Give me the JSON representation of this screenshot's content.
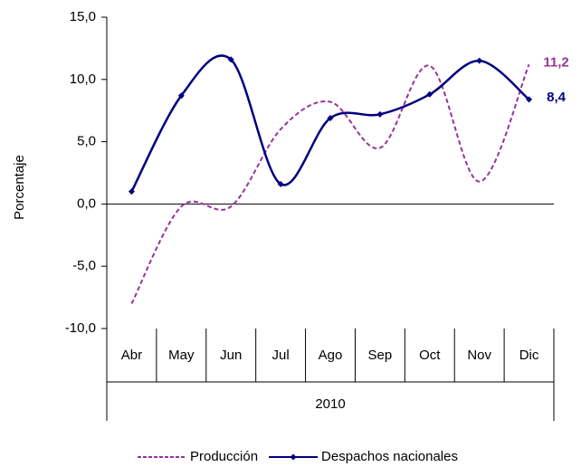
{
  "chart_data": {
    "type": "line",
    "y_label": "Porcentaje",
    "categories": [
      "Abr",
      "May",
      "Jun",
      "Jul",
      "Ago",
      "Sep",
      "Oct",
      "Nov",
      "Dic"
    ],
    "group_label": "2010",
    "series": [
      {
        "name": "Producción",
        "color": "#993399",
        "dashed": true,
        "smooth": true,
        "values": [
          -8.0,
          -0.2,
          -0.2,
          6.0,
          8.2,
          4.5,
          11.1,
          1.8,
          11.2
        ],
        "value_labels": [
          null,
          null,
          null,
          null,
          null,
          null,
          null,
          null,
          "11,2"
        ]
      },
      {
        "name": "Despachos nacionales",
        "color": "#000080",
        "dashed": false,
        "smooth": true,
        "marker": "diamond",
        "values": [
          1.0,
          8.7,
          11.6,
          1.6,
          6.9,
          7.2,
          8.8,
          11.5,
          8.4
        ],
        "value_labels": [
          null,
          null,
          null,
          null,
          null,
          null,
          null,
          null,
          "8,4"
        ]
      }
    ],
    "ylim": [
      -10,
      15
    ],
    "yticks": [
      {
        "value": -10,
        "label": "-10,0"
      },
      {
        "value": -5,
        "label": "-5,0"
      },
      {
        "value": 0,
        "label": "0,0"
      },
      {
        "value": 5,
        "label": "5,0"
      },
      {
        "value": 10,
        "label": "10,0"
      },
      {
        "value": 15,
        "label": "15,0"
      }
    ],
    "grid": false,
    "legend": "bottom"
  }
}
